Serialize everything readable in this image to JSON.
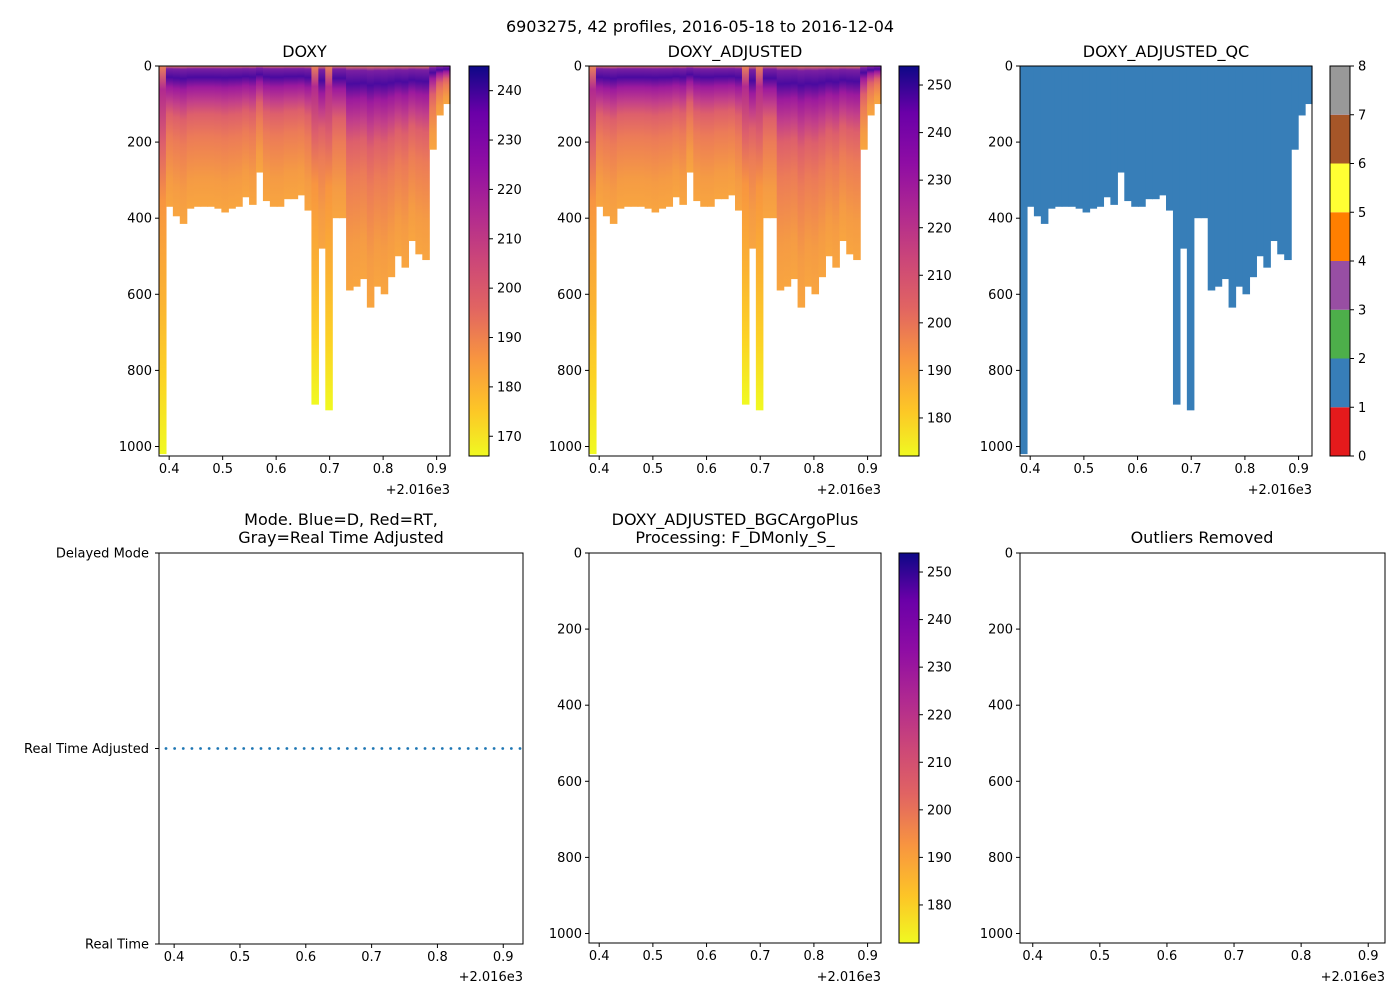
{
  "figure": {
    "suptitle": "6903275, 42 profiles, 2016-05-18 to 2016-12-04",
    "x_offset_label": "+2.016e3"
  },
  "chart_data": [
    {
      "id": "doxy",
      "type": "heatmap",
      "title": "DOXY",
      "xlim": [
        0.381,
        0.925
      ],
      "ylim": [
        1025,
        0
      ],
      "xticks": [
        "0.4",
        "0.5",
        "0.6",
        "0.7",
        "0.8",
        "0.9"
      ],
      "yticks": [
        "0",
        "200",
        "400",
        "600",
        "800",
        "1000"
      ],
      "colormap": "plasma_r",
      "colorbar": {
        "min": 166,
        "max": 245,
        "ticks": [
          "170",
          "180",
          "190",
          "200",
          "210",
          "220",
          "230",
          "240"
        ]
      },
      "profile_max_depths": [
        1020,
        370,
        395,
        415,
        375,
        370,
        370,
        370,
        375,
        385,
        375,
        370,
        345,
        365,
        280,
        355,
        370,
        370,
        350,
        350,
        340,
        380,
        890,
        480,
        905,
        400,
        400,
        590,
        580,
        560,
        635,
        580,
        600,
        555,
        500,
        530,
        460,
        495,
        510,
        220,
        130,
        100
      ]
    },
    {
      "id": "doxy_adjusted",
      "type": "heatmap",
      "title": "DOXY_ADJUSTED",
      "xlim": [
        0.381,
        0.925
      ],
      "ylim": [
        1025,
        0
      ],
      "xticks": [
        "0.4",
        "0.5",
        "0.6",
        "0.7",
        "0.8",
        "0.9"
      ],
      "yticks": [
        "0",
        "200",
        "400",
        "600",
        "800",
        "1000"
      ],
      "colormap": "plasma_r",
      "colorbar": {
        "min": 172,
        "max": 254,
        "ticks": [
          "180",
          "190",
          "200",
          "210",
          "220",
          "230",
          "240",
          "250"
        ]
      },
      "profile_max_depths": [
        1020,
        370,
        395,
        415,
        375,
        370,
        370,
        370,
        375,
        385,
        375,
        370,
        345,
        365,
        280,
        355,
        370,
        370,
        350,
        350,
        340,
        380,
        890,
        480,
        905,
        400,
        400,
        590,
        580,
        560,
        635,
        580,
        600,
        555,
        500,
        530,
        460,
        495,
        510,
        220,
        130,
        100
      ]
    },
    {
      "id": "doxy_adjusted_qc",
      "type": "heatmap",
      "title": "DOXY_ADJUSTED_QC",
      "xlim": [
        0.381,
        0.925
      ],
      "ylim": [
        1025,
        0
      ],
      "xticks": [
        "0.4",
        "0.5",
        "0.6",
        "0.7",
        "0.8",
        "0.9"
      ],
      "yticks": [
        "0",
        "200",
        "400",
        "600",
        "800",
        "1000"
      ],
      "qc_value": 1,
      "colorbar": {
        "min": 0,
        "max": 8,
        "ticks": [
          "0",
          "1",
          "2",
          "3",
          "4",
          "5",
          "6",
          "7",
          "8"
        ],
        "colors": [
          "#e41a1c",
          "#377eb8",
          "#4daf4a",
          "#984ea3",
          "#ff7f00",
          "#ffff33",
          "#a65628",
          "#f781bf",
          "#999999"
        ]
      },
      "profile_max_depths": [
        1020,
        370,
        395,
        415,
        375,
        370,
        370,
        370,
        375,
        385,
        375,
        370,
        345,
        365,
        280,
        355,
        370,
        370,
        350,
        350,
        340,
        380,
        890,
        480,
        905,
        400,
        400,
        590,
        580,
        560,
        635,
        580,
        600,
        555,
        500,
        530,
        460,
        495,
        510,
        220,
        130,
        100
      ]
    },
    {
      "id": "mode",
      "type": "scatter",
      "title_line1": "Mode. Blue=D, Red=RT,",
      "title_line2": "Gray=Real Time Adjusted",
      "xlim": [
        0.377,
        0.93
      ],
      "xticks": [
        "0.4",
        "0.5",
        "0.6",
        "0.7",
        "0.8",
        "0.9"
      ],
      "ycategories": [
        "Delayed Mode",
        "Real Time Adjusted",
        "Real Time"
      ],
      "point_category": "Real Time Adjusted",
      "point_color": "#1f77b4",
      "point_count": 42
    },
    {
      "id": "bgcargoplus",
      "type": "heatmap",
      "title_line1": "DOXY_ADJUSTED_BGCArgoPlus",
      "title_line2": "Processing: F_DMonly_S_",
      "xlim": [
        0.381,
        0.925
      ],
      "ylim": [
        1025,
        0
      ],
      "xticks": [
        "0.4",
        "0.5",
        "0.6",
        "0.7",
        "0.8",
        "0.9"
      ],
      "yticks": [
        "0",
        "200",
        "400",
        "600",
        "800",
        "1000"
      ],
      "colormap": "plasma_r",
      "colorbar": {
        "min": 172,
        "max": 254,
        "ticks": [
          "180",
          "190",
          "200",
          "210",
          "220",
          "230",
          "240",
          "250"
        ]
      },
      "profile_max_depths": []
    },
    {
      "id": "outliers",
      "type": "heatmap",
      "title": "Outliers Removed",
      "xlim": [
        0.381,
        0.925
      ],
      "ylim": [
        1025,
        0
      ],
      "xticks": [
        "0.4",
        "0.5",
        "0.6",
        "0.7",
        "0.8",
        "0.9"
      ],
      "yticks": [
        "0",
        "200",
        "400",
        "600",
        "800",
        "1000"
      ],
      "profile_max_depths": []
    }
  ]
}
